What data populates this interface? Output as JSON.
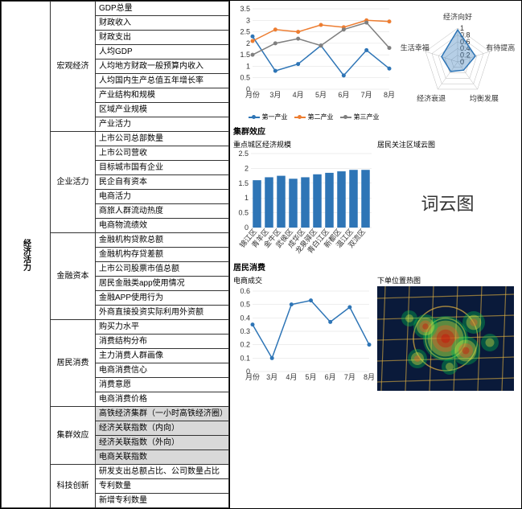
{
  "root_label": "经济活力",
  "categories": [
    {
      "name": "宏观经济",
      "items": [
        "GDP总量",
        "财政收入",
        "财政支出",
        "人均GDP",
        "人均地方财政一般预算内收入",
        "人均国内生产总值五年增长率",
        "产业结构和规模",
        "区域产业规模",
        "产业活力"
      ]
    },
    {
      "name": "企业活力",
      "items": [
        "上市公司总部数量",
        "上市公司营收",
        "目标城市国有企业",
        "民企自有资本",
        "电商活力",
        "商旅人群流动热度",
        "电商物流绩效"
      ]
    },
    {
      "name": "金融资本",
      "items": [
        "金融机构贷款总额",
        "金融机构存贷差额",
        "上市公司股票市值总额",
        "居民金融类app使用情况",
        "金融APP使用行为",
        "外商直接投资实际利用外资额"
      ]
    },
    {
      "name": "居民消费",
      "items": [
        "购买力水平",
        "消费结构分布",
        "主力消费人群画像",
        "电商消费信心",
        "消费意愿",
        "电商消费价格"
      ]
    },
    {
      "name": "集群效应",
      "items": [
        {
          "t": "高铁经济集群（一小时高铁经济圈）",
          "hl": true
        },
        {
          "t": "经济关联指数（内向）",
          "hl": true
        },
        {
          "t": "经济关联指数（外向）",
          "hl": true
        },
        {
          "t": "电商关联指数",
          "hl": true
        }
      ]
    },
    {
      "name": "科技创新",
      "items": [
        "研发支出总额占比、公司数量占比",
        "专利数量",
        "新增专利数量"
      ]
    }
  ],
  "line_chart": {
    "x_labels": [
      "月份",
      "3月",
      "4月",
      "5月",
      "6月",
      "7月",
      "8月"
    ],
    "ylim": [
      0,
      3.5
    ],
    "yticks": [
      0,
      0.5,
      1,
      1.5,
      2,
      2.5,
      3,
      3.5
    ],
    "series": [
      {
        "name": "第一产业",
        "color": "#2e75b6",
        "values": [
          2.3,
          0.8,
          1.1,
          1.9,
          0.6,
          1.7,
          0.9
        ]
      },
      {
        "name": "第二产业",
        "color": "#ed7d31",
        "values": [
          2.1,
          2.6,
          2.5,
          2.8,
          2.7,
          3.0,
          2.95
        ]
      },
      {
        "name": "第三产业",
        "color": "#7f7f7f",
        "values": [
          1.5,
          2.0,
          2.2,
          1.9,
          2.6,
          2.9,
          1.8
        ]
      }
    ],
    "legend_labels": [
      "第一产业",
      "第二产业",
      "第三产业"
    ]
  },
  "radar": {
    "axes": [
      "经济向好",
      "有待提高",
      "均衡发展",
      "经济衰退",
      "生活幸福"
    ],
    "ticks": [
      "0",
      "0.2",
      "0.4",
      "0.6",
      "0.8",
      "1"
    ],
    "values": [
      0.95,
      0.55,
      0.3,
      0.35,
      0.5
    ],
    "fill": "#2e75b6",
    "fill_opacity": 0.35,
    "stroke": "#2e75b6"
  },
  "section2": {
    "title": "集群效应",
    "sub_left": "重点城区经济规模",
    "sub_right": "居民关注区域云图"
  },
  "bar_chart": {
    "ylim": [
      0,
      2.5
    ],
    "yticks": [
      0,
      0.5,
      1,
      1.5,
      2,
      2.5
    ],
    "color": "#2e75b6",
    "labels": [
      "锦江区",
      "青羊区",
      "金牛区",
      "武侯区",
      "成华区",
      "龙泉驿区",
      "青白江区",
      "新都区",
      "温江区",
      "双流区"
    ],
    "values": [
      1.6,
      1.7,
      1.75,
      1.65,
      1.7,
      1.8,
      1.85,
      1.9,
      1.95,
      1.95
    ]
  },
  "wordcloud": {
    "text": "词云图",
    "color": "#333",
    "fontsize": 22
  },
  "section3": {
    "title": "居民消费",
    "sub_left": "电商成交",
    "sub_right": "下单位置热图"
  },
  "line2": {
    "x_labels": [
      "月份",
      "3月",
      "4月",
      "5月",
      "6月",
      "7月",
      "8月"
    ],
    "ylim": [
      0,
      0.6
    ],
    "yticks": [
      0,
      0.1,
      0.2,
      0.3,
      0.4,
      0.5,
      0.6
    ],
    "color": "#2e75b6",
    "values": [
      0.35,
      0.1,
      0.5,
      0.53,
      0.37,
      0.48,
      0.2
    ]
  },
  "heatmap": {
    "bg": "#0a1a3a",
    "roads": "#e0b040",
    "hot": [
      "#1e90ff",
      "#00c853",
      "#ffeb3b",
      "#ff5722",
      "#d50000"
    ]
  }
}
